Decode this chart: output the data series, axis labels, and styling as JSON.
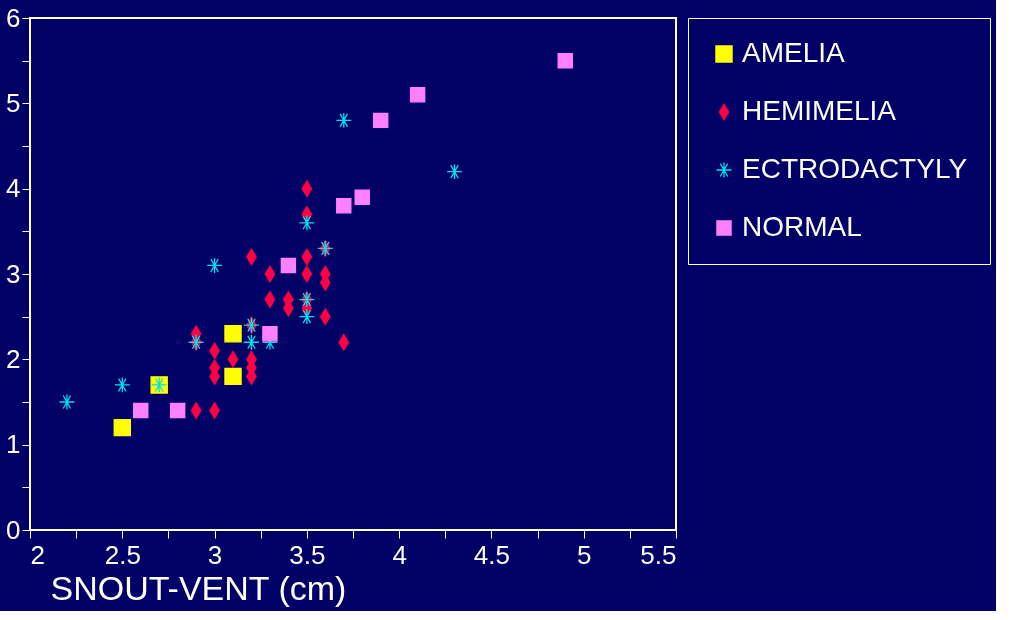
{
  "chart_data": {
    "type": "scatter",
    "xlabel": "SNOUT-VENT (cm)",
    "legend": "top right",
    "grid": false,
    "xlim": [
      2,
      5.5
    ],
    "ylim": [
      0,
      6
    ],
    "xticks": [
      2,
      {
        "value": 2.25,
        "label": null
      },
      2.5,
      {
        "value": 2.75,
        "label": null
      },
      3,
      {
        "value": 3.25,
        "label": null
      },
      3.5,
      {
        "value": 3.75,
        "label": null
      },
      4,
      {
        "value": 4.25,
        "label": null
      },
      4.5,
      {
        "value": 4.75,
        "label": null
      },
      5,
      {
        "value": 5.25,
        "label": null
      },
      5.5
    ],
    "yticks": [
      0,
      {
        "value": 0.5,
        "label": null
      },
      1,
      {
        "value": 1.5,
        "label": null
      },
      2,
      {
        "value": 2.5,
        "label": null
      },
      3,
      {
        "value": 3.5,
        "label": null
      },
      4,
      {
        "value": 4.5,
        "label": null
      },
      5,
      {
        "value": 5.5,
        "label": null
      },
      6
    ],
    "series": [
      {
        "name": "AMELIA",
        "color": "#ffff00",
        "marker": "square",
        "x": [
          2.5,
          2.7,
          3.1,
          3.1
        ],
        "values": [
          1.2,
          1.7,
          2.3,
          1.8
        ]
      },
      {
        "name": "HEMIMELIA",
        "color": "#ff0044",
        "marker": "diamond",
        "x": [
          2.9,
          3.0,
          2.9,
          2.9,
          3.0,
          3.0,
          3.0,
          3.1,
          3.2,
          3.2,
          3.2,
          3.2,
          3.2,
          3.3,
          3.3,
          3.4,
          3.4,
          3.5,
          3.5,
          3.5,
          3.5,
          3.5,
          3.5,
          3.6,
          3.6,
          3.6,
          3.6,
          3.7
        ],
        "values": [
          1.4,
          1.4,
          2.3,
          2.2,
          2.1,
          1.9,
          1.8,
          2.0,
          3.2,
          2.4,
          2.0,
          1.9,
          1.8,
          3.0,
          2.7,
          2.7,
          2.6,
          4.0,
          3.7,
          3.2,
          3.0,
          2.7,
          2.6,
          3.3,
          3.0,
          2.9,
          2.5,
          2.2
        ]
      },
      {
        "name": "ECTRODACTYLY",
        "color": "#00e0f0",
        "marker": "cross",
        "x": [
          2.2,
          2.5,
          2.7,
          2.9,
          3.0,
          3.2,
          3.2,
          3.3,
          3.5,
          3.5,
          3.5,
          3.6,
          3.7,
          4.3
        ],
        "values": [
          1.5,
          1.7,
          1.7,
          2.2,
          3.1,
          2.4,
          2.2,
          2.2,
          3.6,
          2.7,
          2.5,
          3.3,
          4.8,
          4.2
        ]
      },
      {
        "name": "NORMAL",
        "color": "#ff80ff",
        "marker": "square",
        "x": [
          2.6,
          2.8,
          3.3,
          3.4,
          3.7,
          3.8,
          3.9,
          4.1,
          4.9
        ],
        "values": [
          1.4,
          1.4,
          2.3,
          3.1,
          3.8,
          3.9,
          4.8,
          5.1,
          5.5
        ]
      }
    ]
  }
}
